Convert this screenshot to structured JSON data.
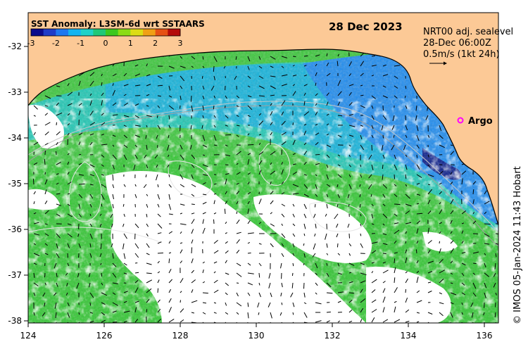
{
  "title": "SST Anomaly: L3SM-6d wrt SSTAARS",
  "date": "28 Dec 2023",
  "current_info": {
    "line1": "NRT00 adj. sealevel",
    "line2": "28-Dec 06:00Z",
    "line3": "0.5m/s (1kt 24h)"
  },
  "argo_label": "Argo",
  "credit": "© IMOS 05-Jan-2024 11:43 Hobart",
  "colorbar": {
    "ticks": [
      "-3",
      "-2",
      "-1",
      "0",
      "1",
      "2",
      "3"
    ],
    "colors": [
      "#0a0a8c",
      "#1e3cc8",
      "#1e78f0",
      "#14b4f0",
      "#1ed2c8",
      "#1ec878",
      "#3cc81e",
      "#8cdc14",
      "#dcdc14",
      "#f0a014",
      "#e65014",
      "#b40a0a"
    ]
  },
  "axes": {
    "lon_labels": [
      "124",
      "126",
      "128",
      "130",
      "132",
      "134",
      "136"
    ],
    "lat_labels": [
      "-32",
      "-33",
      "-34",
      "-35",
      "-36",
      "-37",
      "-38"
    ]
  },
  "colors": {
    "land": "#fcc996",
    "cloud": "#ffffff",
    "argo": "#ff00ff"
  }
}
